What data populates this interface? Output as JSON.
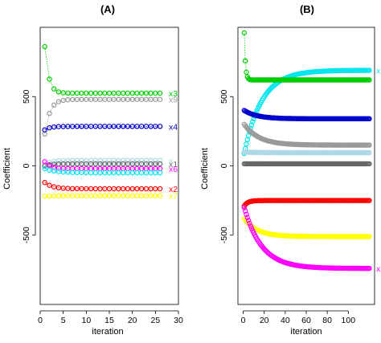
{
  "chart_data": [
    {
      "type": "line",
      "title": "(A)",
      "xlabel": "iteration",
      "ylabel": "Coefficient",
      "xlim": [
        0,
        30
      ],
      "ylim": [
        -1000,
        1000
      ],
      "xticks": [
        "0",
        "5",
        "10",
        "15",
        "20",
        "25",
        "30"
      ],
      "yticks": [
        "-500",
        "0",
        "500"
      ],
      "grid": false,
      "legend": "none",
      "x": [
        1,
        2,
        3,
        4,
        5,
        6,
        7,
        8,
        9,
        10,
        11,
        12,
        13,
        14,
        15,
        16,
        17,
        18,
        19,
        20,
        21,
        22,
        23,
        24,
        25,
        26
      ],
      "series": [
        {
          "name": "x3",
          "color": "#00cc00",
          "start": 860,
          "final": 525,
          "rate": 1.2
        },
        {
          "name": "x9",
          "color": "#999999",
          "start": 230,
          "final": 480,
          "rate": 0.9
        },
        {
          "name": "x4",
          "color": "#0000cc",
          "start": 260,
          "final": 285,
          "rate": 0.9
        },
        {
          "name": "x",
          "color": "#add8e6",
          "start": 5,
          "final": 40,
          "rate": 0.8
        },
        {
          "name": "x1",
          "color": "#666666",
          "start": 0,
          "final": 15,
          "rate": 0.8
        },
        {
          "name": "x6",
          "color": "#ff00ff",
          "start": 30,
          "final": -20,
          "rate": 0.8
        },
        {
          "name": "",
          "color": "#00e5ee",
          "start": -20,
          "final": -50,
          "rate": 0.4
        },
        {
          "name": "x2",
          "color": "#ff0000",
          "start": -120,
          "final": -165,
          "rate": 0.6
        },
        {
          "name": "x7",
          "color": "#ffff00",
          "start": -220,
          "final": -215,
          "rate": 0.6
        }
      ]
    },
    {
      "type": "line",
      "title": "(B)",
      "xlabel": "iteration",
      "ylabel": "Coefficient",
      "xlim": [
        -5,
        125
      ],
      "ylim": [
        -1000,
        1000
      ],
      "xticks": [
        "0",
        "20",
        "40",
        "60",
        "80",
        "100"
      ],
      "yticks": [
        "-500",
        "0",
        "500"
      ],
      "grid": false,
      "legend": "none",
      "x_range": [
        1,
        120
      ],
      "series": [
        {
          "name": "x",
          "color": "#00e5ee",
          "start": 90,
          "final": 690,
          "rate": 0.06
        },
        {
          "name": "",
          "color": "#00cc00",
          "start": 960,
          "final": 620,
          "rate": 0.9
        },
        {
          "name": "",
          "color": "#0000cc",
          "start": 400,
          "final": 340,
          "rate": 0.08
        },
        {
          "name": "",
          "color": "#999999",
          "start": 300,
          "final": 150,
          "rate": 0.07
        },
        {
          "name": "",
          "color": "#add8e6",
          "start": 100,
          "final": 95,
          "rate": 0.08
        },
        {
          "name": "",
          "color": "#666666",
          "start": 15,
          "final": 15,
          "rate": 0.1
        },
        {
          "name": "",
          "color": "#ff0000",
          "start": -290,
          "final": -250,
          "rate": 0.3
        },
        {
          "name": "",
          "color": "#ffff00",
          "start": -380,
          "final": -510,
          "rate": 0.08
        },
        {
          "name": "x",
          "color": "#ff00ff",
          "start": -300,
          "final": -740,
          "rate": 0.06
        }
      ]
    }
  ]
}
